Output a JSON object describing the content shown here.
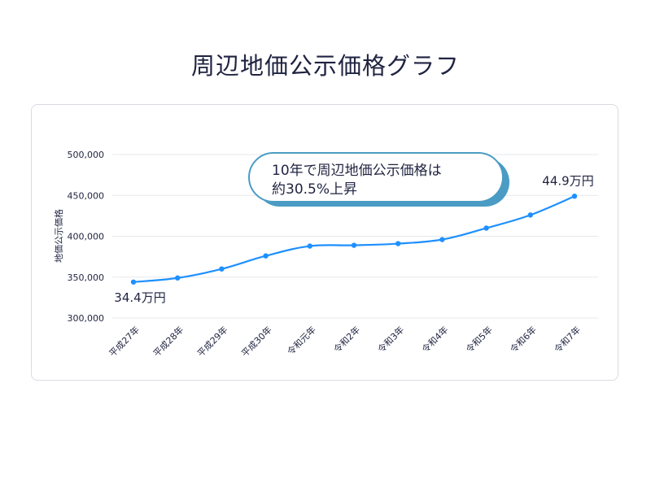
{
  "page_title": "周辺地価公示価格グラフ",
  "chart_data": {
    "type": "line",
    "title": "周辺地価公示価格グラフ",
    "xlabel": "",
    "ylabel": "地価公示価格",
    "ylim": [
      300000,
      500000
    ],
    "yticks": [
      300000,
      350000,
      400000,
      450000,
      500000
    ],
    "ytick_labels": [
      "300,000",
      "350,000",
      "400,000",
      "450,000",
      "500,000"
    ],
    "grid": true,
    "categories": [
      "平成27年",
      "平成28年",
      "平成29年",
      "平成30年",
      "令和元年",
      "令和2年",
      "令和3年",
      "令和4年",
      "令和5年",
      "令和6年",
      "令和7年"
    ],
    "series": [
      {
        "name": "地価公示価格",
        "color": "#1e90ff",
        "values": [
          344000,
          349000,
          360000,
          376000,
          388000,
          389000,
          391000,
          396000,
          410000,
          426000,
          449000
        ]
      }
    ],
    "annotations": {
      "start_label": "34.4万円",
      "end_label": "44.9万円",
      "callout_line1": "10年で周辺地価公示価格は",
      "callout_line2": "約30.5%上昇"
    },
    "colors": {
      "line": "#1e90ff",
      "callout_border": "#4a9cc4",
      "callout_shadow": "#4a9cc4",
      "grid": "#e7e9ee",
      "text": "#1f2340"
    }
  }
}
